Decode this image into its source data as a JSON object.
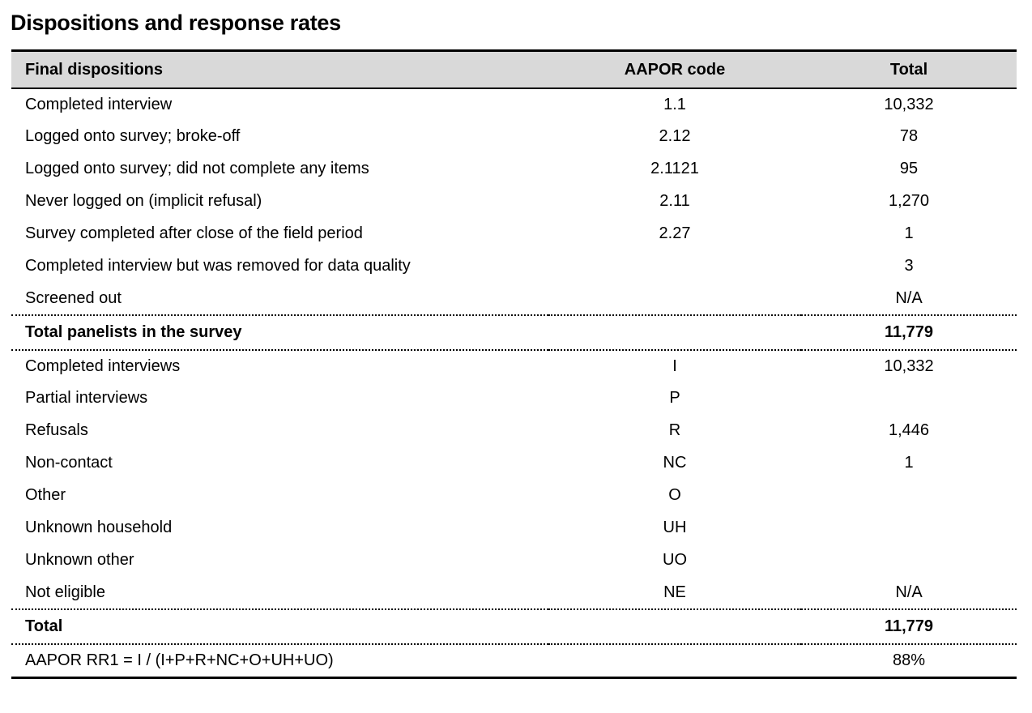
{
  "page": {
    "title": "Dispositions and response rates"
  },
  "colors": {
    "header_background": "#d9d9d9",
    "text": "#000000",
    "rule_lines": "#000000"
  },
  "table": {
    "columns": {
      "label": "Final dispositions",
      "code": "AAPOR code",
      "total": "Total"
    },
    "rows": [
      {
        "label": "Completed interview",
        "code": "1.1",
        "total": "10,332",
        "style": "normal"
      },
      {
        "label": "Logged onto survey; broke-off",
        "code": "2.12",
        "total": "78",
        "style": "normal"
      },
      {
        "label": "Logged onto survey; did not complete any items",
        "code": "2.1121",
        "total": "95",
        "style": "normal"
      },
      {
        "label": "Never logged on (implicit refusal)",
        "code": "2.11",
        "total": "1,270",
        "style": "normal"
      },
      {
        "label": "Survey completed after close of the field period",
        "code": "2.27",
        "total": "1",
        "style": "normal"
      },
      {
        "label": "Completed interview but was removed for data quality",
        "code": "",
        "total": "3",
        "style": "normal"
      },
      {
        "label": "Screened out",
        "code": "",
        "total": "N/A",
        "style": "normal"
      },
      {
        "label": "Total panelists in the survey",
        "code": "",
        "total": "11,779",
        "style": "subtotal"
      },
      {
        "label": "Completed interviews",
        "code": "I",
        "total": "10,332",
        "style": "normal"
      },
      {
        "label": "Partial interviews",
        "code": "P",
        "total": "",
        "style": "normal"
      },
      {
        "label": "Refusals",
        "code": "R",
        "total": "1,446",
        "style": "normal"
      },
      {
        "label": "Non-contact",
        "code": "NC",
        "total": "1",
        "style": "normal"
      },
      {
        "label": "Other",
        "code": "O",
        "total": "",
        "style": "normal"
      },
      {
        "label": "Unknown household",
        "code": "UH",
        "total": "",
        "style": "normal"
      },
      {
        "label": "Unknown other",
        "code": "UO",
        "total": "",
        "style": "normal"
      },
      {
        "label": "Not eligible",
        "code": "NE",
        "total": "N/A",
        "style": "normal"
      },
      {
        "label": "Total",
        "code": "",
        "total": "11,779",
        "style": "subtotal"
      },
      {
        "label": "AAPOR RR1 = I / (I+P+R+NC+O+UH+UO)",
        "code": "",
        "total": "88%",
        "style": "formula"
      }
    ]
  }
}
